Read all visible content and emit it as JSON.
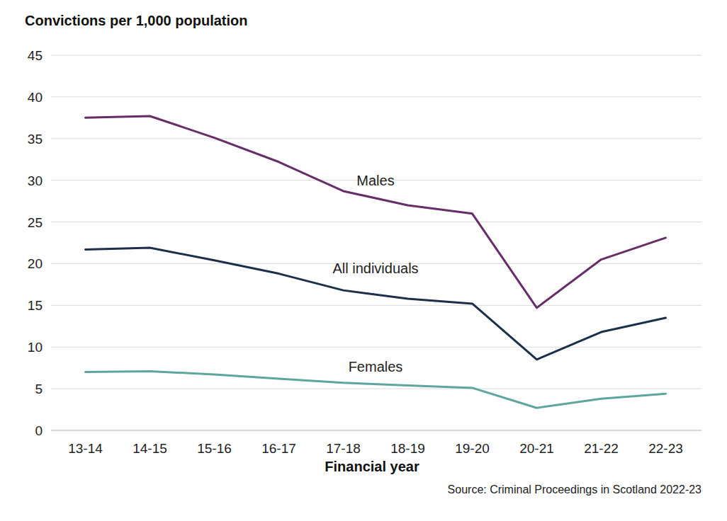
{
  "chart_data": {
    "type": "line",
    "title": "Convictions per 1,000 population",
    "x_label": "Financial year",
    "source": "Source: Criminal Proceedings in Scotland 2022-23",
    "categories": [
      "13-14",
      "14-15",
      "15-16",
      "16-17",
      "17-18",
      "18-19",
      "19-20",
      "20-21",
      "21-22",
      "22-23"
    ],
    "series": [
      {
        "name": "Males",
        "color": "#662d68",
        "values": [
          37.5,
          37.7,
          35.1,
          32.2,
          28.7,
          27.0,
          26.0,
          14.7,
          20.5,
          23.1
        ]
      },
      {
        "name": "All individuals",
        "color": "#1b2f4b",
        "values": [
          21.7,
          21.9,
          20.4,
          18.8,
          16.8,
          15.8,
          15.2,
          8.5,
          11.8,
          13.5
        ]
      },
      {
        "name": "Females",
        "color": "#5ea59d",
        "values": [
          7.0,
          7.1,
          6.7,
          6.2,
          5.7,
          5.4,
          5.1,
          2.7,
          3.8,
          4.4
        ]
      }
    ],
    "ylim": [
      0,
      45
    ],
    "yticks": [
      0,
      5,
      10,
      15,
      20,
      25,
      30,
      35,
      40,
      45
    ],
    "grid": true
  }
}
